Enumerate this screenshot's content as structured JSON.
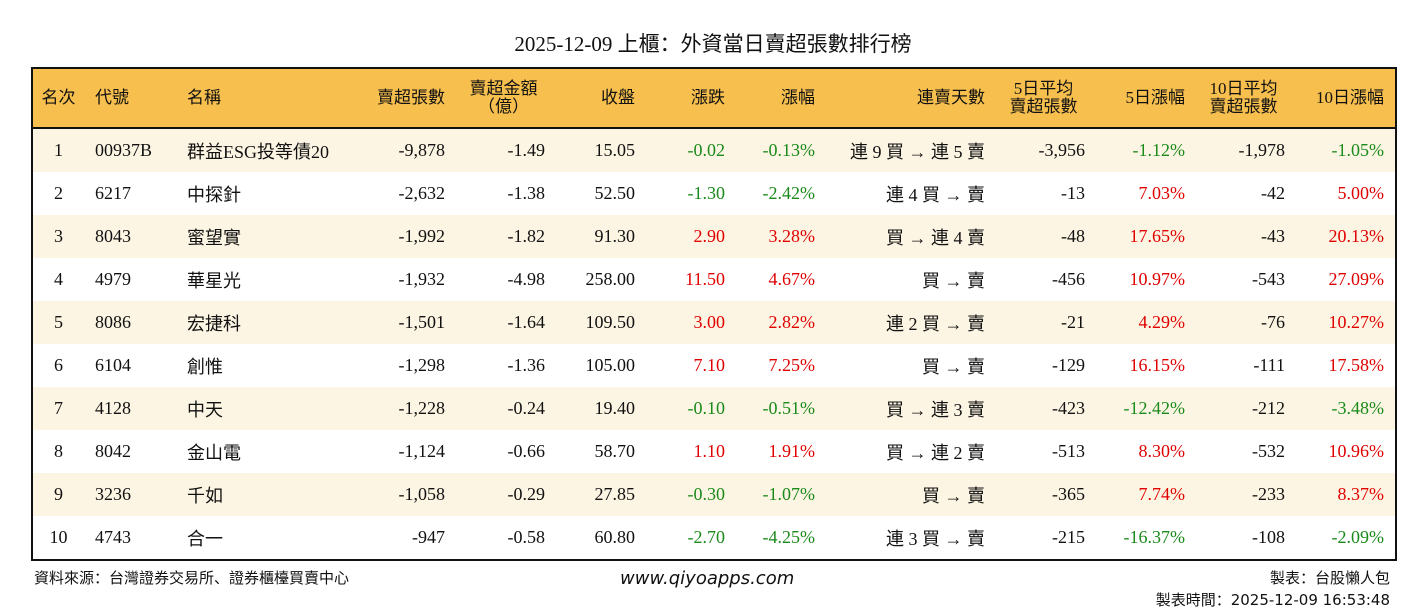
{
  "title": "2025-12-09 上櫃：外資當日賣超張數排行榜",
  "colors": {
    "header": "#F6BF4E",
    "stripe": "#FDF5E3",
    "up": "#E00000",
    "down": "#1A8A1A"
  },
  "headers": [
    "名次",
    "代號",
    "名稱",
    "賣超張數",
    "賣超金額\n（億）",
    "收盤",
    "漲跌",
    "漲幅",
    "連賣天數",
    "5日平均\n賣超張數",
    "5日漲幅",
    "10日平均\n賣超張數",
    "10日漲幅"
  ],
  "rows": [
    [
      "1",
      "00937B",
      "群益ESG投等債20",
      "-9,878",
      "-1.49",
      "15.05",
      "-0.02",
      "-0.13%",
      "連 9 買 → 連 5 賣",
      "-3,956",
      "-1.12%",
      "-1,978",
      "-1.05%"
    ],
    [
      "2",
      "6217",
      "中探針",
      "-2,632",
      "-1.38",
      "52.50",
      "-1.30",
      "-2.42%",
      "連 4 買 → 賣",
      "-13",
      "7.03%",
      "-42",
      "5.00%"
    ],
    [
      "3",
      "8043",
      "蜜望實",
      "-1,992",
      "-1.82",
      "91.30",
      "2.90",
      "3.28%",
      "買 → 連 4 賣",
      "-48",
      "17.65%",
      "-43",
      "20.13%"
    ],
    [
      "4",
      "4979",
      "華星光",
      "-1,932",
      "-4.98",
      "258.00",
      "11.50",
      "4.67%",
      "買 → 賣",
      "-456",
      "10.97%",
      "-543",
      "27.09%"
    ],
    [
      "5",
      "8086",
      "宏捷科",
      "-1,501",
      "-1.64",
      "109.50",
      "3.00",
      "2.82%",
      "連 2 買 → 賣",
      "-21",
      "4.29%",
      "-76",
      "10.27%"
    ],
    [
      "6",
      "6104",
      "創惟",
      "-1,298",
      "-1.36",
      "105.00",
      "7.10",
      "7.25%",
      "買 → 賣",
      "-129",
      "16.15%",
      "-111",
      "17.58%"
    ],
    [
      "7",
      "4128",
      "中天",
      "-1,228",
      "-0.24",
      "19.40",
      "-0.10",
      "-0.51%",
      "買 → 連 3 賣",
      "-423",
      "-12.42%",
      "-212",
      "-3.48%"
    ],
    [
      "8",
      "8042",
      "金山電",
      "-1,124",
      "-0.66",
      "58.70",
      "1.10",
      "1.91%",
      "買 → 連 2 賣",
      "-513",
      "8.30%",
      "-532",
      "10.96%"
    ],
    [
      "9",
      "3236",
      "千如",
      "-1,058",
      "-0.29",
      "27.85",
      "-0.30",
      "-1.07%",
      "買 → 賣",
      "-365",
      "7.74%",
      "-233",
      "8.37%"
    ],
    [
      "10",
      "4743",
      "合一",
      "-947",
      "-0.58",
      "60.80",
      "-2.70",
      "-4.25%",
      "連 3 買 → 賣",
      "-215",
      "-16.37%",
      "-108",
      "-2.09%"
    ]
  ],
  "footer": {
    "source": "資料來源：台灣證券交易所、證券櫃檯買賣中心",
    "website": "www.qiyoapps.com",
    "maker": "製表：台股懶人包",
    "time": "製表時間：2025-12-09 16:53:48"
  }
}
